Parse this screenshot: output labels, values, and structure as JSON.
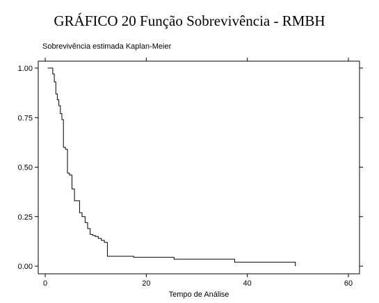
{
  "page": {
    "title": "GRÁFICO 20 Função Sobrevivência - RMBH"
  },
  "chart_data": {
    "type": "line",
    "subtitle": "Sobrevivência estimada Kaplan-Meier",
    "xlabel": "Tempo de Análise",
    "ylabel": "",
    "xlim": [
      0,
      60
    ],
    "ylim": [
      0,
      1
    ],
    "x_ticks": [
      "0",
      "20",
      "40",
      "60"
    ],
    "y_ticks": [
      "0.00",
      "0.25",
      "0.50",
      "0.75",
      "1.00"
    ],
    "grid": false,
    "legend": "none",
    "line_color": "#000000",
    "series": [
      {
        "step": "post",
        "x": [
          0.5,
          1.5,
          1.8,
          2.1,
          2.4,
          2.7,
          3.0,
          3.3,
          3.6,
          4.0,
          4.4,
          4.8,
          5.3,
          5.8,
          6.3,
          6.8,
          7.3,
          7.9,
          8.4,
          8.9,
          9.4,
          9.9,
          10.5,
          11.1,
          11.7,
          12.3,
          12.9,
          13.5,
          17.5,
          25.5,
          37.5,
          49.5
        ],
        "y": [
          1.0,
          0.97,
          0.93,
          0.87,
          0.84,
          0.81,
          0.77,
          0.74,
          0.6,
          0.59,
          0.47,
          0.46,
          0.39,
          0.33,
          0.33,
          0.27,
          0.25,
          0.22,
          0.19,
          0.16,
          0.155,
          0.15,
          0.14,
          0.13,
          0.12,
          0.05,
          0.05,
          0.05,
          0.045,
          0.035,
          0.02,
          0.0
        ]
      }
    ]
  }
}
